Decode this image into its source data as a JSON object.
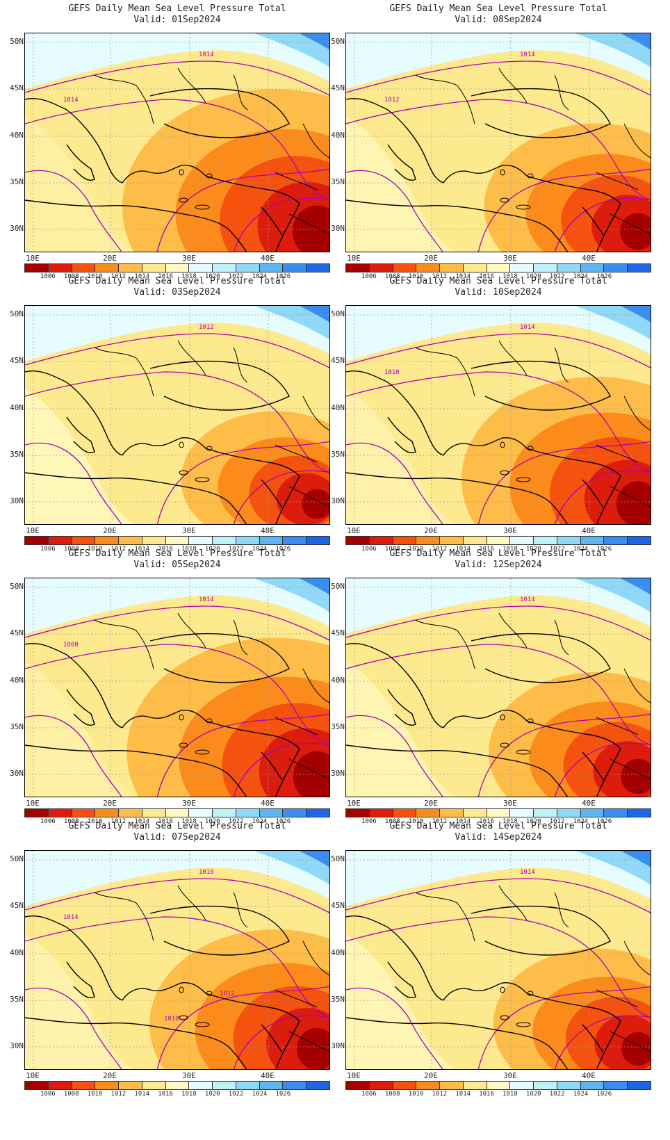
{
  "figure": {
    "panels": [
      {
        "title": "GEFS Daily Mean Sea Level Pressure Total",
        "valid": "Valid: 01Sep2024",
        "labels": [
          "1014",
          "1014"
        ],
        "intensity": 1.0
      },
      {
        "title": "GEFS Daily Mean Sea Level Pressure Total",
        "valid": "Valid: 08Sep2024",
        "labels": [
          "1014",
          "1012"
        ],
        "intensity": 0.55
      },
      {
        "title": "GEFS Daily Mean Sea Level Pressure Total",
        "valid": "Valid: 03Sep2024",
        "labels": [
          "1012"
        ],
        "intensity": 0.35
      },
      {
        "title": "GEFS Daily Mean Sea Level Pressure Total",
        "valid": "Valid: 10Sep2024",
        "labels": [
          "1014",
          "1010"
        ],
        "intensity": 0.8
      },
      {
        "title": "GEFS Daily Mean Sea Level Pressure Total",
        "valid": "Valid: 05Sep2024",
        "labels": [
          "1014",
          "1008"
        ],
        "intensity": 0.95
      },
      {
        "title": "GEFS Daily Mean Sea Level Pressure Total",
        "valid": "Valid: 12Sep2024",
        "labels": [
          "1014"
        ],
        "intensity": 0.5
      },
      {
        "title": "GEFS Daily Mean Sea Level Pressure Total",
        "valid": "Valid: 07Sep2024",
        "labels": [
          "1016",
          "1014",
          "1012",
          "1010"
        ],
        "intensity": 0.7
      },
      {
        "title": "GEFS Daily Mean Sea Level Pressure Total",
        "valid": "Valid: 14Sep2024",
        "labels": [
          "1014"
        ],
        "intensity": 0.45
      }
    ],
    "lat_labels": [
      "50N",
      "45N",
      "40N",
      "35N",
      "30N"
    ],
    "lon_labels": [
      "10E",
      "20E",
      "30E",
      "40E"
    ],
    "colorbar": {
      "labels": [
        "1006",
        "1008",
        "1010",
        "1012",
        "1014",
        "1016",
        "1018",
        "1020",
        "1022",
        "1024",
        "1026"
      ],
      "colors": [
        "#a50000",
        "#dc1c0c",
        "#f4520e",
        "#fb8c1c",
        "#fdbd48",
        "#fde98e",
        "#fffac3",
        "#e6fcff",
        "#bff1fb",
        "#8fd8f8",
        "#5fb4f2",
        "#3a8df0",
        "#1e66e6"
      ]
    }
  }
}
